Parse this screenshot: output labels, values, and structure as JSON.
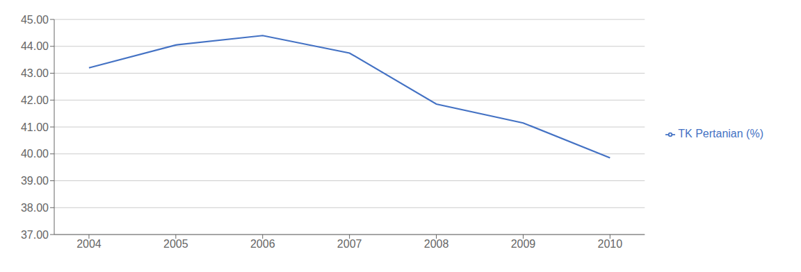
{
  "chart_data": {
    "type": "line",
    "x": [
      2004,
      2005,
      2006,
      2007,
      2008,
      2009,
      2010
    ],
    "series": [
      {
        "name": "TK Pertanian (%)",
        "color": "#4472C4",
        "values": [
          43.2,
          44.05,
          44.4,
          43.75,
          41.85,
          41.15,
          39.85
        ]
      }
    ],
    "xlim": [
      2003.6,
      2010.4
    ],
    "xticks": [
      2004,
      2005,
      2006,
      2007,
      2008,
      2009,
      2010
    ],
    "ylim": [
      37.0,
      45.0
    ],
    "yticks": [
      {
        "value": 37.0,
        "label": "37.00"
      },
      {
        "value": 38.0,
        "label": "38.00"
      },
      {
        "value": 39.0,
        "label": "39.00"
      },
      {
        "value": 40.0,
        "label": "40.00"
      },
      {
        "value": 41.0,
        "label": "41.00"
      },
      {
        "value": 42.0,
        "label": "42.00"
      },
      {
        "value": 43.0,
        "label": "43.00"
      },
      {
        "value": 44.0,
        "label": "44.00"
      },
      {
        "value": 45.0,
        "label": "45.00"
      }
    ],
    "grid": "y",
    "legend": "right"
  }
}
